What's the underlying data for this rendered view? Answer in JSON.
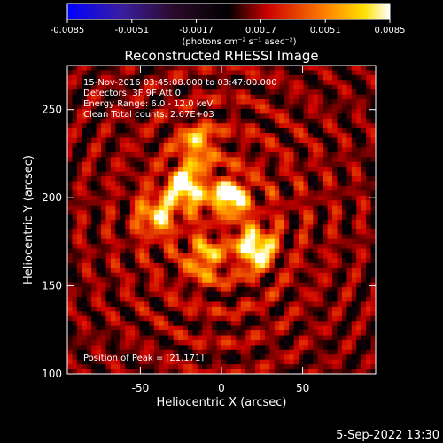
{
  "chart_data": {
    "type": "heatmap",
    "title": "Reconstructed RHESSI Image",
    "xlabel": "Heliocentric X (arcsec)",
    "ylabel": "Heliocentric Y (arcsec)",
    "xlim": [
      -95,
      95
    ],
    "ylim": [
      100,
      275
    ],
    "x_ticks": [
      -50,
      0,
      50
    ],
    "y_ticks": [
      100,
      150,
      200,
      250
    ],
    "colorbar": {
      "ticks": [
        "-0.0085",
        "-0.0051",
        "-0.0017",
        "0.0017",
        "0.0051",
        "0.0085"
      ],
      "range": [
        -0.0085,
        0.0085
      ],
      "unit_label": "(photons cm⁻² s⁻¹ asec⁻²)",
      "colormap": [
        "#0000ff",
        "#5a14a0",
        "#000000",
        "#cc0000",
        "#ff6a00",
        "#ffd200",
        "#ffffff"
      ]
    },
    "info_lines": [
      "15-Nov-2016 03:45:08.000 to 03:47:00.000",
      "Detectors: 3F 9F  Att 0",
      "Energy Range: 6.0 - 12.0 keV",
      "Clean    Total counts: 2.67E+03"
    ],
    "peak_label": "Position of Peak = [21,171]",
    "peak_position": [
      21,
      171
    ],
    "bright_sources": [
      {
        "x": -22,
        "y": 206,
        "value": 0.0085
      },
      {
        "x": 5,
        "y": 200,
        "value": 0.008
      },
      {
        "x": 21,
        "y": 171,
        "value": 0.0085
      },
      {
        "x": -40,
        "y": 190,
        "value": 0.006
      },
      {
        "x": -15,
        "y": 230,
        "value": 0.0055
      },
      {
        "x": -10,
        "y": 165,
        "value": 0.005
      }
    ]
  },
  "footer": {
    "timestamp": "5-Sep-2022 13:30"
  }
}
